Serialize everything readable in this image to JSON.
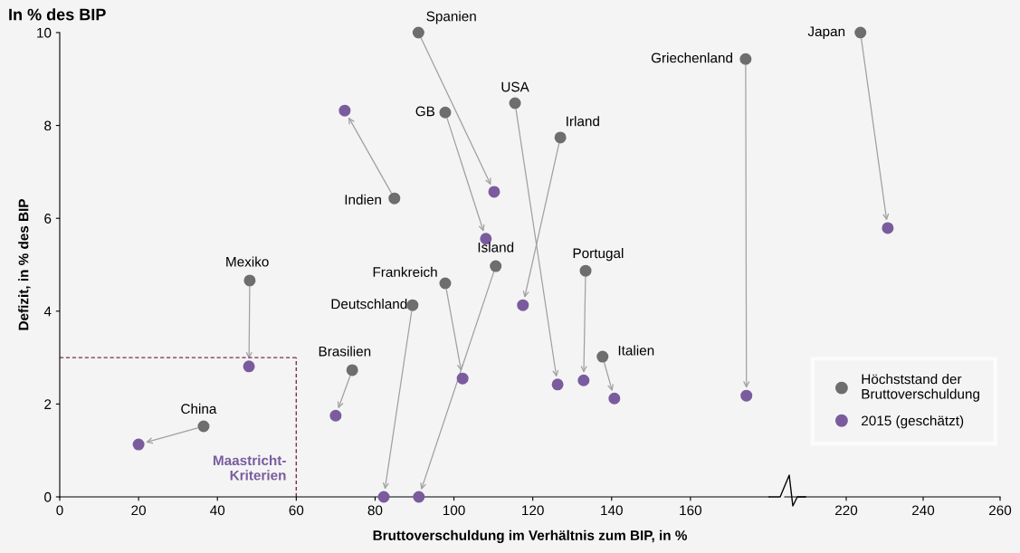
{
  "chart_data": [
    {
      "type": "scatter",
      "title": "In % des BIP",
      "xlabel": "Bruttoverschuldung im Verhältnis zum BIP, in %",
      "ylabel": "Defizit, in % des BIP",
      "series": [
        {
          "color": "#6d6e6d",
          "x": [
            91,
            174,
            115.5,
            97.8,
            127,
            84.9,
            48.2,
            97.8,
            110.6,
            89.5,
            133.4,
            74.2,
            137.7,
            36.5
          ],
          "values": [
            10,
            9.43,
            8.48,
            8.28,
            7.74,
            6.43,
            4.66,
            4.6,
            4.97,
            4.13,
            4.87,
            2.73,
            3.02,
            1.52
          ]
        },
        {
          "color": "#7a5c9e",
          "x": [
            110.2,
            174.2,
            126.3,
            108.1,
            117.5,
            72.3,
            48,
            102.2,
            91.1,
            82.2,
            132.9,
            70,
            140.7,
            20
          ],
          "values": [
            6.57,
            2.18,
            2.42,
            5.56,
            4.13,
            8.32,
            2.81,
            2.55,
            0,
            0,
            2.51,
            1.75,
            2.12,
            1.13
          ]
        }
      ],
      "annotations": [
        {
          "text": "Spanien",
          "x": 91,
          "y": 10
        },
        {
          "text": "Griechenland",
          "x": 174,
          "y": 9.43
        },
        {
          "text": "USA",
          "x": 115.5,
          "y": 8.48
        },
        {
          "text": "GB",
          "x": 97.8,
          "y": 8.28
        },
        {
          "text": "Irland",
          "x": 127,
          "y": 7.74
        },
        {
          "text": "Indien",
          "x": 84.9,
          "y": 6.43
        },
        {
          "text": "Mexiko",
          "x": 48.2,
          "y": 4.66
        },
        {
          "text": "Frankreich",
          "x": 97.8,
          "y": 4.6
        },
        {
          "text": "Island",
          "x": 110.6,
          "y": 4.97
        },
        {
          "text": "Deutschland",
          "x": 89.5,
          "y": 4.13
        },
        {
          "text": "Portugal",
          "x": 133.4,
          "y": 4.87
        },
        {
          "text": "Brasilien",
          "x": 74.2,
          "y": 2.73
        },
        {
          "text": "Italien",
          "x": 137.7,
          "y": 3.02
        },
        {
          "text": "China",
          "x": 36.5,
          "y": 1.52
        }
      ],
      "ref_lines": [
        {
          "axis": "y",
          "value": 3,
          "color": "#7b2d4a",
          "line_style": "dashed"
        },
        {
          "axis": "x",
          "value": 60,
          "color": "#7b2d4a",
          "line_style": "dashed",
          "label": "Maastricht-\nKriterien"
        }
      ],
      "xlim": [
        0,
        180
      ],
      "xticks": [
        0,
        20,
        40,
        60,
        80,
        100,
        120,
        140,
        160
      ],
      "ylim": [
        0,
        10
      ],
      "yticks": [
        0,
        2,
        4,
        6,
        8,
        10
      ],
      "grid": false,
      "marker": "circle"
    },
    {
      "type": "scatter",
      "series": [
        {
          "name": "Höchststand der\nBruttoverschuldung",
          "color": "#6d6e6d",
          "x": [
            223.7
          ],
          "values": [
            10
          ]
        },
        {
          "name": "2015 (geschätzt)",
          "color": "#7a5c9e",
          "x": [
            230.8
          ],
          "values": [
            5.79
          ]
        }
      ],
      "annotations": [
        {
          "text": "Japan",
          "x": 223.7,
          "y": 10
        }
      ],
      "xlim": [
        204,
        260
      ],
      "xticks": [
        220,
        240,
        260
      ],
      "ylim": [
        0,
        10
      ],
      "yticks": [
        0,
        2,
        4,
        6,
        8,
        10
      ],
      "tick_labels": "x",
      "grid": false,
      "legend": "bottom right",
      "marker": "circle"
    }
  ]
}
